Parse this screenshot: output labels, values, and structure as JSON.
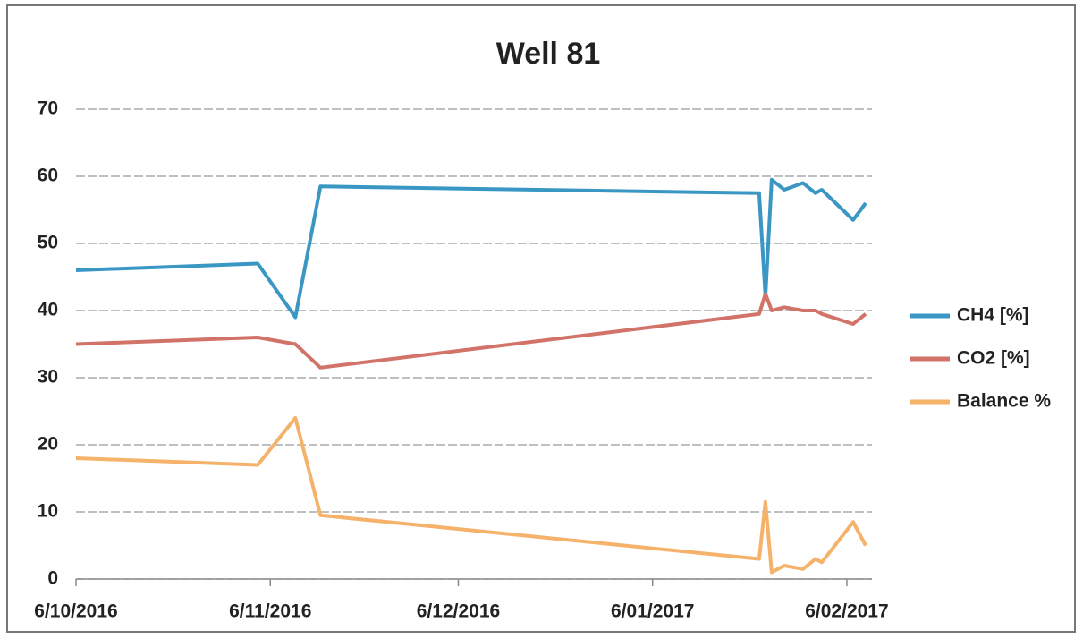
{
  "chart_data": {
    "type": "line",
    "title": "Well 81",
    "x": [
      "2016-10-06",
      "2016-11-04",
      "2016-11-10",
      "2016-11-14",
      "2017-01-23",
      "2017-01-24",
      "2017-01-25",
      "2017-01-27",
      "2017-01-30",
      "2017-02-01",
      "2017-02-02",
      "2017-02-07",
      "2017-02-09"
    ],
    "series": [
      {
        "name": "CH4 [%]",
        "color": "#3a97c4",
        "values": [
          46,
          47,
          39,
          58.5,
          57.5,
          42,
          59.5,
          58,
          59,
          57.5,
          58,
          53.5,
          56
        ]
      },
      {
        "name": "CO2 [%]",
        "color": "#d2736a",
        "values": [
          35,
          36,
          35,
          31.5,
          39.5,
          42.5,
          40,
          40.5,
          40,
          40,
          39.5,
          38,
          39.5
        ]
      },
      {
        "name": "Balance %",
        "color": "#f5b26b",
        "values": [
          18,
          17,
          24,
          9.5,
          3,
          11.5,
          1,
          2,
          1.5,
          3,
          2.5,
          8.5,
          5
        ]
      }
    ],
    "xlim": [
      "2016-10-06",
      "2017-02-10"
    ],
    "xticks": [
      {
        "value": "2016-10-06",
        "label": "6/10/2016"
      },
      {
        "value": "2016-11-06",
        "label": "6/11/2016"
      },
      {
        "value": "2016-12-06",
        "label": "6/12/2016"
      },
      {
        "value": "2017-01-06",
        "label": "6/01/2017"
      },
      {
        "value": "2017-02-06",
        "label": "6/02/2017"
      }
    ],
    "ylim": [
      0,
      70
    ],
    "yticks": [
      0,
      10,
      20,
      30,
      40,
      50,
      60,
      70
    ],
    "grid": true,
    "legend": "right"
  }
}
